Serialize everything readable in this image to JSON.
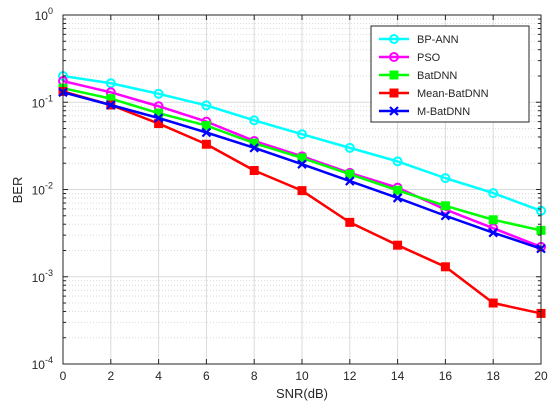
{
  "chart_data": {
    "type": "line",
    "xlabel": "SNR(dB)",
    "ylabel": "BER",
    "x": [
      0,
      2,
      4,
      6,
      8,
      10,
      12,
      14,
      16,
      18,
      20
    ],
    "xlim": [
      0,
      20
    ],
    "ylim": [
      0.0001,
      1
    ],
    "yscale": "log",
    "grid": true,
    "legend_position": "top-right",
    "x_ticks": [
      "0",
      "2",
      "4",
      "6",
      "8",
      "10",
      "12",
      "14",
      "16",
      "18",
      "20"
    ],
    "y_ticks": [
      {
        "value": 1,
        "base": "10",
        "exp": "0"
      },
      {
        "value": 0.1,
        "base": "10",
        "exp": "-1"
      },
      {
        "value": 0.01,
        "base": "10",
        "exp": "-2"
      },
      {
        "value": 0.001,
        "base": "10",
        "exp": "-3"
      },
      {
        "value": 0.0001,
        "base": "10",
        "exp": "-4"
      }
    ],
    "series": [
      {
        "name": "BP-ANN",
        "color": "#00ffff",
        "marker": "circle",
        "values": [
          0.2,
          0.165,
          0.125,
          0.092,
          0.062,
          0.043,
          0.03,
          0.021,
          0.0135,
          0.0091,
          0.0057
        ]
      },
      {
        "name": "PSO",
        "color": "#ff00ff",
        "marker": "circle",
        "values": [
          0.175,
          0.13,
          0.09,
          0.06,
          0.036,
          0.024,
          0.0155,
          0.0105,
          0.0059,
          0.0036,
          0.0022
        ]
      },
      {
        "name": "BatDNN",
        "color": "#00ff00",
        "marker": "square",
        "values": [
          0.145,
          0.11,
          0.075,
          0.054,
          0.034,
          0.023,
          0.015,
          0.0098,
          0.0065,
          0.0045,
          0.0034
        ]
      },
      {
        "name": "Mean-BatDNN",
        "color": "#ff0000",
        "marker": "square",
        "values": [
          0.133,
          0.093,
          0.057,
          0.033,
          0.0165,
          0.0097,
          0.0042,
          0.0023,
          0.0013,
          0.0005,
          0.00038
        ]
      },
      {
        "name": "M-BatDNN",
        "color": "#0000ff",
        "marker": "x",
        "values": [
          0.13,
          0.093,
          0.066,
          0.045,
          0.03,
          0.0195,
          0.0125,
          0.008,
          0.005,
          0.0032,
          0.0021
        ]
      }
    ]
  }
}
